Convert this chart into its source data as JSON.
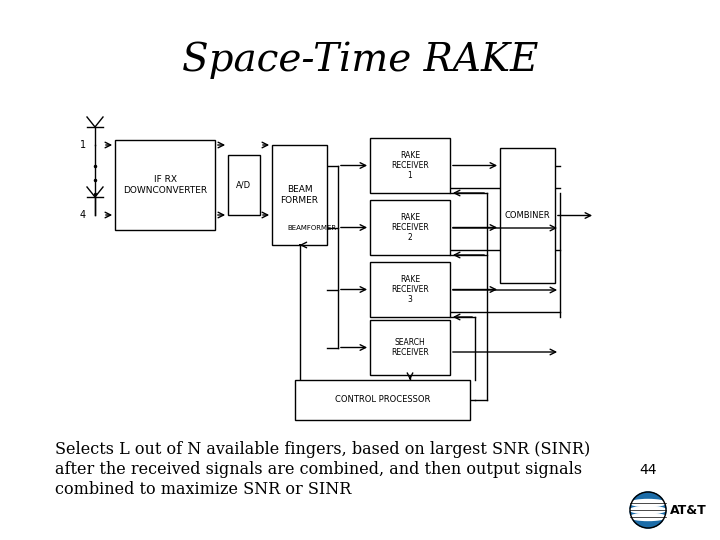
{
  "title": "Space-Time RAKE",
  "title_fontsize": 28,
  "title_font": "serif",
  "bg_color": "#ffffff",
  "text_color": "#000000",
  "caption_lines": [
    "Selects L out of N available fingers, based on largest SNR (SINR)",
    "after the received signals are combined, and then output signals",
    "combined to maximize SNR or SINR"
  ],
  "caption_fontsize": 11.5,
  "page_number": "44",
  "lw": 1.0
}
